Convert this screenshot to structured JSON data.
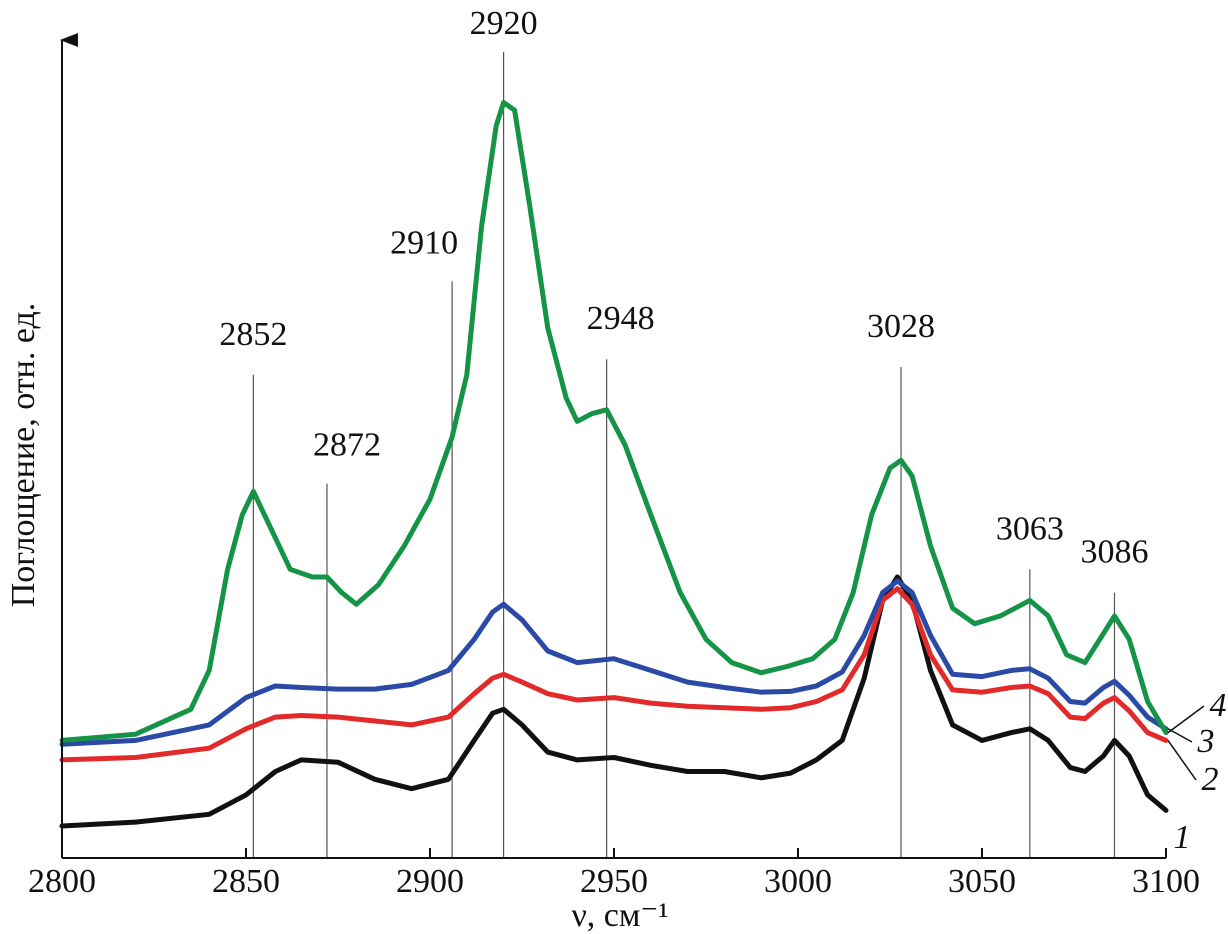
{
  "chart_data": {
    "type": "line",
    "xlabel": "ν, см⁻¹",
    "ylabel": "Поглощение, отн. ед.",
    "xlim": [
      2800,
      3100
    ],
    "x_ticks": [
      2800,
      2850,
      2900,
      2950,
      3000,
      3050,
      3100
    ],
    "ylim": [
      0,
      1
    ],
    "peak_annotations": [
      {
        "label": "2852",
        "x": 2852,
        "y": 0.58
      },
      {
        "label": "2872",
        "x": 2872,
        "y": 0.44
      },
      {
        "label": "2910",
        "x": 2906,
        "y": 0.7
      },
      {
        "label": "2920",
        "x": 2920,
        "y": 0.995
      },
      {
        "label": "2948",
        "x": 2948,
        "y": 0.6
      },
      {
        "label": "3028",
        "x": 3028,
        "y": 0.59
      },
      {
        "label": "3063",
        "x": 3063,
        "y": 0.33
      },
      {
        "label": "3086",
        "x": 3086,
        "y": 0.3
      }
    ],
    "series": [
      {
        "name": "1",
        "color": "#111111",
        "points": [
          [
            2800,
            0.0
          ],
          [
            2820,
            0.005
          ],
          [
            2840,
            0.015
          ],
          [
            2850,
            0.04
          ],
          [
            2858,
            0.07
          ],
          [
            2865,
            0.085
          ],
          [
            2875,
            0.082
          ],
          [
            2885,
            0.06
          ],
          [
            2895,
            0.048
          ],
          [
            2905,
            0.06
          ],
          [
            2912,
            0.11
          ],
          [
            2917,
            0.145
          ],
          [
            2920,
            0.15
          ],
          [
            2925,
            0.13
          ],
          [
            2932,
            0.095
          ],
          [
            2940,
            0.085
          ],
          [
            2950,
            0.088
          ],
          [
            2960,
            0.078
          ],
          [
            2970,
            0.07
          ],
          [
            2980,
            0.07
          ],
          [
            2990,
            0.062
          ],
          [
            2998,
            0.068
          ],
          [
            3005,
            0.085
          ],
          [
            3012,
            0.11
          ],
          [
            3018,
            0.19
          ],
          [
            3023,
            0.29
          ],
          [
            3027,
            0.32
          ],
          [
            3031,
            0.29
          ],
          [
            3036,
            0.2
          ],
          [
            3042,
            0.13
          ],
          [
            3050,
            0.11
          ],
          [
            3058,
            0.12
          ],
          [
            3063,
            0.125
          ],
          [
            3068,
            0.11
          ],
          [
            3074,
            0.075
          ],
          [
            3078,
            0.07
          ],
          [
            3083,
            0.09
          ],
          [
            3086,
            0.11
          ],
          [
            3090,
            0.09
          ],
          [
            3095,
            0.04
          ],
          [
            3100,
            0.02
          ]
        ]
      },
      {
        "name": "2",
        "color": "#e32a2a",
        "points": [
          [
            2800,
            0.085
          ],
          [
            2820,
            0.088
          ],
          [
            2840,
            0.1
          ],
          [
            2850,
            0.125
          ],
          [
            2858,
            0.14
          ],
          [
            2865,
            0.142
          ],
          [
            2875,
            0.14
          ],
          [
            2885,
            0.135
          ],
          [
            2895,
            0.13
          ],
          [
            2905,
            0.14
          ],
          [
            2912,
            0.17
          ],
          [
            2917,
            0.19
          ],
          [
            2920,
            0.195
          ],
          [
            2925,
            0.185
          ],
          [
            2932,
            0.17
          ],
          [
            2940,
            0.162
          ],
          [
            2950,
            0.165
          ],
          [
            2960,
            0.158
          ],
          [
            2970,
            0.154
          ],
          [
            2980,
            0.152
          ],
          [
            2990,
            0.15
          ],
          [
            2998,
            0.152
          ],
          [
            3005,
            0.16
          ],
          [
            3012,
            0.175
          ],
          [
            3018,
            0.22
          ],
          [
            3023,
            0.29
          ],
          [
            3027,
            0.305
          ],
          [
            3031,
            0.285
          ],
          [
            3036,
            0.22
          ],
          [
            3042,
            0.175
          ],
          [
            3050,
            0.172
          ],
          [
            3058,
            0.178
          ],
          [
            3063,
            0.18
          ],
          [
            3068,
            0.17
          ],
          [
            3074,
            0.14
          ],
          [
            3078,
            0.138
          ],
          [
            3083,
            0.158
          ],
          [
            3086,
            0.165
          ],
          [
            3090,
            0.148
          ],
          [
            3095,
            0.12
          ],
          [
            3100,
            0.11
          ]
        ]
      },
      {
        "name": "3",
        "color": "#2a4aa6",
        "points": [
          [
            2800,
            0.105
          ],
          [
            2820,
            0.11
          ],
          [
            2840,
            0.13
          ],
          [
            2850,
            0.165
          ],
          [
            2858,
            0.18
          ],
          [
            2865,
            0.178
          ],
          [
            2875,
            0.176
          ],
          [
            2885,
            0.176
          ],
          [
            2895,
            0.182
          ],
          [
            2905,
            0.2
          ],
          [
            2912,
            0.24
          ],
          [
            2917,
            0.275
          ],
          [
            2920,
            0.285
          ],
          [
            2925,
            0.265
          ],
          [
            2932,
            0.225
          ],
          [
            2940,
            0.21
          ],
          [
            2950,
            0.215
          ],
          [
            2960,
            0.2
          ],
          [
            2970,
            0.185
          ],
          [
            2980,
            0.178
          ],
          [
            2990,
            0.172
          ],
          [
            2998,
            0.173
          ],
          [
            3005,
            0.18
          ],
          [
            3012,
            0.198
          ],
          [
            3018,
            0.245
          ],
          [
            3023,
            0.3
          ],
          [
            3027,
            0.315
          ],
          [
            3031,
            0.3
          ],
          [
            3036,
            0.245
          ],
          [
            3042,
            0.195
          ],
          [
            3050,
            0.192
          ],
          [
            3058,
            0.2
          ],
          [
            3063,
            0.202
          ],
          [
            3068,
            0.19
          ],
          [
            3074,
            0.16
          ],
          [
            3078,
            0.158
          ],
          [
            3083,
            0.178
          ],
          [
            3086,
            0.186
          ],
          [
            3090,
            0.168
          ],
          [
            3095,
            0.14
          ],
          [
            3100,
            0.125
          ]
        ]
      },
      {
        "name": "4",
        "color": "#159447",
        "points": [
          [
            2800,
            0.11
          ],
          [
            2820,
            0.118
          ],
          [
            2835,
            0.15
          ],
          [
            2840,
            0.2
          ],
          [
            2845,
            0.33
          ],
          [
            2849,
            0.4
          ],
          [
            2852,
            0.43
          ],
          [
            2856,
            0.39
          ],
          [
            2862,
            0.33
          ],
          [
            2868,
            0.32
          ],
          [
            2872,
            0.32
          ],
          [
            2876,
            0.3
          ],
          [
            2880,
            0.285
          ],
          [
            2886,
            0.31
          ],
          [
            2893,
            0.36
          ],
          [
            2900,
            0.42
          ],
          [
            2906,
            0.5
          ],
          [
            2910,
            0.58
          ],
          [
            2914,
            0.77
          ],
          [
            2918,
            0.9
          ],
          [
            2920,
            0.93
          ],
          [
            2923,
            0.92
          ],
          [
            2927,
            0.8
          ],
          [
            2932,
            0.64
          ],
          [
            2937,
            0.55
          ],
          [
            2940,
            0.52
          ],
          [
            2944,
            0.53
          ],
          [
            2948,
            0.535
          ],
          [
            2953,
            0.49
          ],
          [
            2960,
            0.4
          ],
          [
            2968,
            0.3
          ],
          [
            2975,
            0.24
          ],
          [
            2982,
            0.21
          ],
          [
            2990,
            0.197
          ],
          [
            2997,
            0.205
          ],
          [
            3004,
            0.215
          ],
          [
            3010,
            0.24
          ],
          [
            3015,
            0.3
          ],
          [
            3020,
            0.4
          ],
          [
            3025,
            0.46
          ],
          [
            3028,
            0.47
          ],
          [
            3031,
            0.45
          ],
          [
            3036,
            0.36
          ],
          [
            3042,
            0.28
          ],
          [
            3048,
            0.26
          ],
          [
            3055,
            0.27
          ],
          [
            3063,
            0.29
          ],
          [
            3068,
            0.27
          ],
          [
            3073,
            0.22
          ],
          [
            3078,
            0.21
          ],
          [
            3082,
            0.24
          ],
          [
            3086,
            0.27
          ],
          [
            3090,
            0.24
          ],
          [
            3095,
            0.16
          ],
          [
            3100,
            0.12
          ]
        ]
      }
    ]
  }
}
